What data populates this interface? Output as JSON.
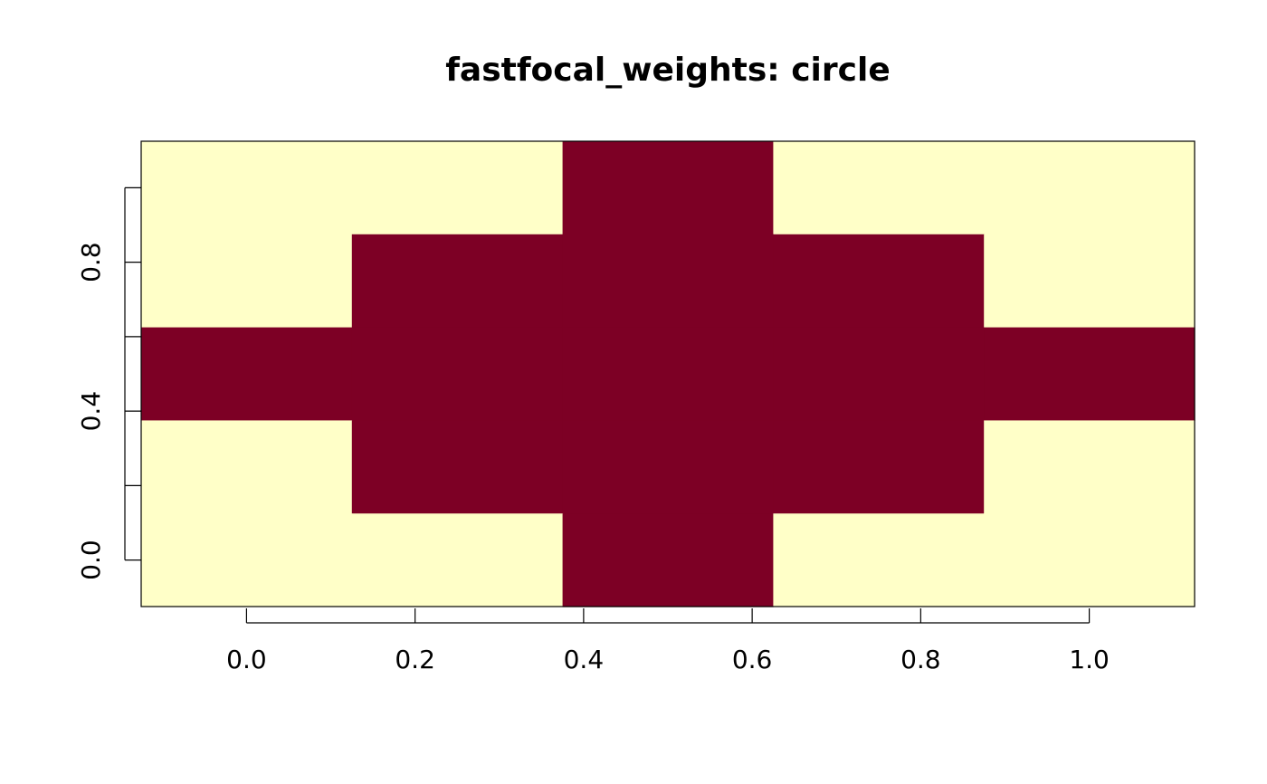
{
  "chart_data": {
    "type": "heatmap",
    "title": "fastfocal_weights: circle",
    "xlabel": "",
    "ylabel": "",
    "xlim": [
      -0.125,
      1.125
    ],
    "ylim": [
      -0.125,
      1.125
    ],
    "x_ticks": [
      0.0,
      0.2,
      0.4,
      0.6,
      0.8,
      1.0
    ],
    "x_tick_labels": [
      "0.0",
      "0.2",
      "0.4",
      "0.6",
      "0.8",
      "1.0"
    ],
    "y_ticks": [
      0.0,
      0.2,
      0.4,
      0.6,
      0.8,
      1.0
    ],
    "y_tick_labels": [
      "0.0",
      "",
      "0.4",
      "",
      "0.8",
      ""
    ],
    "grid": false,
    "legend": "none",
    "cell_centers": [
      0.0,
      0.25,
      0.5,
      0.75,
      1.0
    ],
    "cell_size": 0.25,
    "rows_top_to_bottom": [
      [
        0,
        0,
        1,
        0,
        0
      ],
      [
        0,
        1,
        1,
        1,
        0
      ],
      [
        1,
        1,
        1,
        1,
        1
      ],
      [
        0,
        1,
        1,
        1,
        0
      ],
      [
        0,
        0,
        1,
        0,
        0
      ]
    ],
    "colors": {
      "0": "#FFFFC8",
      "1": "#7D0025"
    }
  }
}
